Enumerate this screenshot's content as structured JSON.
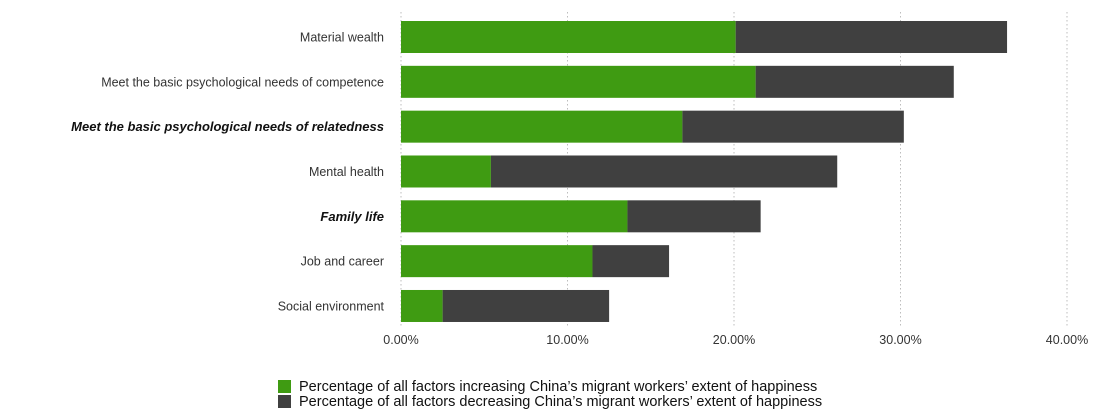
{
  "chart_data": {
    "type": "bar",
    "orientation": "horizontal",
    "stacked": true,
    "categories": [
      "Material wealth",
      "Meet the basic psychological needs of competence",
      "Meet the basic psychological needs of relatedness",
      "Mental health",
      "Family life",
      "Job and career",
      "Social environment"
    ],
    "emphasized_categories": [
      "Meet the basic psychological needs of relatedness",
      "Family life"
    ],
    "series": [
      {
        "name": "Percentage of all factors increasing China’s migrant workers’ extent of happiness",
        "color": "#3f9b12",
        "values": [
          20.1,
          21.3,
          16.9,
          5.4,
          13.6,
          11.5,
          2.5
        ]
      },
      {
        "name": "Percentage of all factors decreasing China’s migrant workers’ extent of happiness",
        "color": "#404040",
        "values": [
          16.3,
          11.9,
          13.3,
          20.8,
          8.0,
          4.6,
          10.0
        ]
      }
    ],
    "xlim": [
      0,
      40
    ],
    "xticks": [
      "0.00%",
      "10.00%",
      "20.00%",
      "30.00%",
      "40.00%"
    ],
    "grid": "vertical dotted",
    "legend_position": "bottom",
    "title": "",
    "xlabel": "",
    "ylabel": ""
  }
}
